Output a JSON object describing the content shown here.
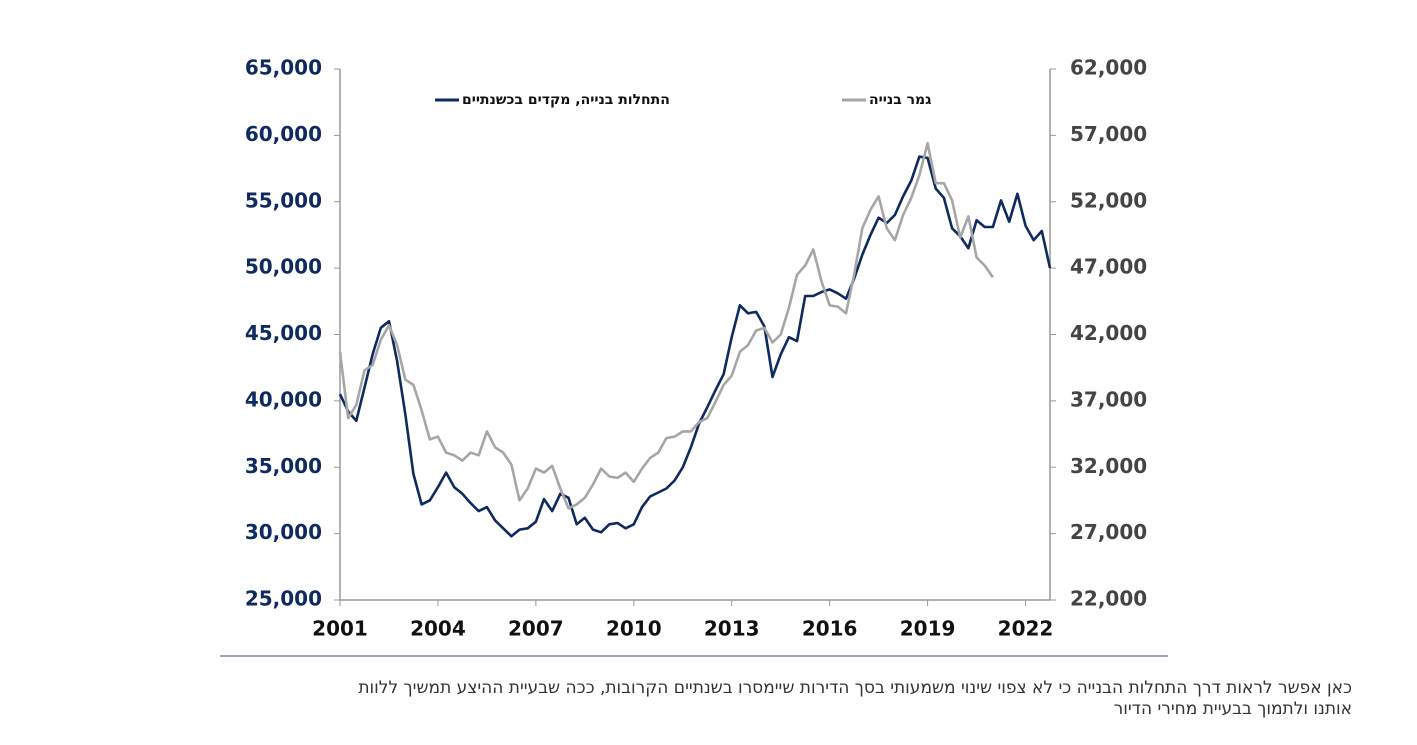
{
  "chart_data": {
    "type": "line",
    "x": [
      2001,
      2001.25,
      2001.5,
      2001.75,
      2002,
      2002.25,
      2002.5,
      2002.75,
      2003,
      2003.25,
      2003.5,
      2003.75,
      2004,
      2004.25,
      2004.5,
      2004.75,
      2005,
      2005.25,
      2005.5,
      2005.75,
      2006,
      2006.25,
      2006.5,
      2006.75,
      2007,
      2007.25,
      2007.5,
      2007.75,
      2008,
      2008.25,
      2008.5,
      2008.75,
      2009,
      2009.25,
      2009.5,
      2009.75,
      2010,
      2010.25,
      2010.5,
      2010.75,
      2011,
      2011.25,
      2011.5,
      2011.75,
      2012,
      2012.25,
      2012.5,
      2012.75,
      2013,
      2013.25,
      2013.5,
      2013.75,
      2014,
      2014.25,
      2014.5,
      2014.75,
      2015,
      2015.25,
      2015.5,
      2015.75,
      2016,
      2016.25,
      2016.5,
      2016.75,
      2017,
      2017.25,
      2017.5,
      2017.75,
      2018,
      2018.25,
      2018.5,
      2018.75,
      2019,
      2019.25,
      2019.5,
      2019.75,
      2020,
      2020.25,
      2020.5,
      2020.75,
      2021,
      2021.25,
      2021.5,
      2021.75,
      2022,
      2022.25,
      2022.5,
      2022.75
    ],
    "series": [
      {
        "name": "התחלות בנייה, מקדים בכשנתיים",
        "color": "#0e2a5e",
        "axis": "y",
        "values": [
          40500,
          39200,
          38500,
          41000,
          43500,
          45500,
          46000,
          43000,
          39000,
          34500,
          32200,
          32500,
          33500,
          34600,
          33500,
          33000,
          32300,
          31700,
          32000,
          31000,
          30400,
          29800,
          30300,
          30400,
          30900,
          32600,
          31700,
          33000,
          32700,
          30700,
          31200,
          30300,
          30100,
          30700,
          30800,
          30400,
          30700,
          32000,
          32800,
          33100,
          33400,
          34000,
          35000,
          36500,
          38300,
          39500,
          40800,
          42000,
          44800,
          47200,
          46600,
          46700,
          45600,
          41800,
          43500,
          44800,
          44500,
          47900,
          47900,
          48200,
          48400,
          48100,
          47700,
          49200,
          51000,
          52500,
          53800,
          53400,
          54000,
          55400,
          56600,
          58400,
          58300,
          56000,
          55300,
          53000,
          52400,
          51500,
          53600,
          53100,
          53100,
          55100,
          53500,
          55600,
          53200,
          52100,
          52800,
          50000
        ]
      },
      {
        "name": "גמר בנייה",
        "color": "#a6a6a6",
        "axis": "y2",
        "values": [
          40700,
          35700,
          36700,
          39300,
          39700,
          41600,
          42700,
          41200,
          38600,
          38200,
          36300,
          34100,
          34300,
          33100,
          32900,
          32500,
          33100,
          32900,
          34700,
          33500,
          33100,
          32200,
          29500,
          30400,
          31900,
          31600,
          32100,
          30400,
          28900,
          29200,
          29700,
          30700,
          31900,
          31300,
          31200,
          31600,
          30900,
          31900,
          32700,
          33100,
          34200,
          34300,
          34700,
          34700,
          35400,
          35700,
          36900,
          38200,
          38900,
          40700,
          41200,
          42300,
          42500,
          41400,
          42000,
          44000,
          46500,
          47200,
          48400,
          46000,
          44200,
          44100,
          43600,
          46500,
          50000,
          51400,
          52400,
          50000,
          49100,
          51000,
          52300,
          54000,
          56400,
          53400,
          53400,
          52100,
          49300,
          50900,
          47800,
          47200,
          46300,
          null,
          null,
          null,
          null,
          null,
          null,
          null
        ]
      }
    ],
    "xlim": [
      2001,
      2022.75
    ],
    "xticks": [
      2001,
      2004,
      2007,
      2010,
      2013,
      2016,
      2019,
      2022
    ],
    "ylim": [
      25000,
      65000
    ],
    "yticks": [
      {
        "value": 25000,
        "label": "25,000"
      },
      {
        "value": 30000,
        "label": "30,000"
      },
      {
        "value": 35000,
        "label": "35,000"
      },
      {
        "value": 40000,
        "label": "40,000"
      },
      {
        "value": 45000,
        "label": "45,000"
      },
      {
        "value": 50000,
        "label": "50,000"
      },
      {
        "value": 55000,
        "label": "55,000"
      },
      {
        "value": 60000,
        "label": "60,000"
      },
      {
        "value": 65000,
        "label": "65,000"
      }
    ],
    "y2lim": [
      22000,
      62000
    ],
    "y2ticks": [
      {
        "value": 22000,
        "label": "22,000"
      },
      {
        "value": 27000,
        "label": "27,000"
      },
      {
        "value": 32000,
        "label": "32,000"
      },
      {
        "value": 37000,
        "label": "37,000"
      },
      {
        "value": 42000,
        "label": "42,000"
      },
      {
        "value": 47000,
        "label": "47,000"
      },
      {
        "value": 52000,
        "label": "52,000"
      },
      {
        "value": 57000,
        "label": "57,000"
      },
      {
        "value": 62000,
        "label": "62,000"
      }
    ],
    "legend": "top",
    "caption": [
      "כאן אפשר לראות דרך התחלות הבנייה כי לא צפוי שינוי משמעותי בסך הדירות שיימסרו בשנתיים הקרובות, ככה שבעיית ההיצע תמשיך ללוות",
      "אותנו ולתמוך בבעיית מחירי הדיור"
    ]
  }
}
